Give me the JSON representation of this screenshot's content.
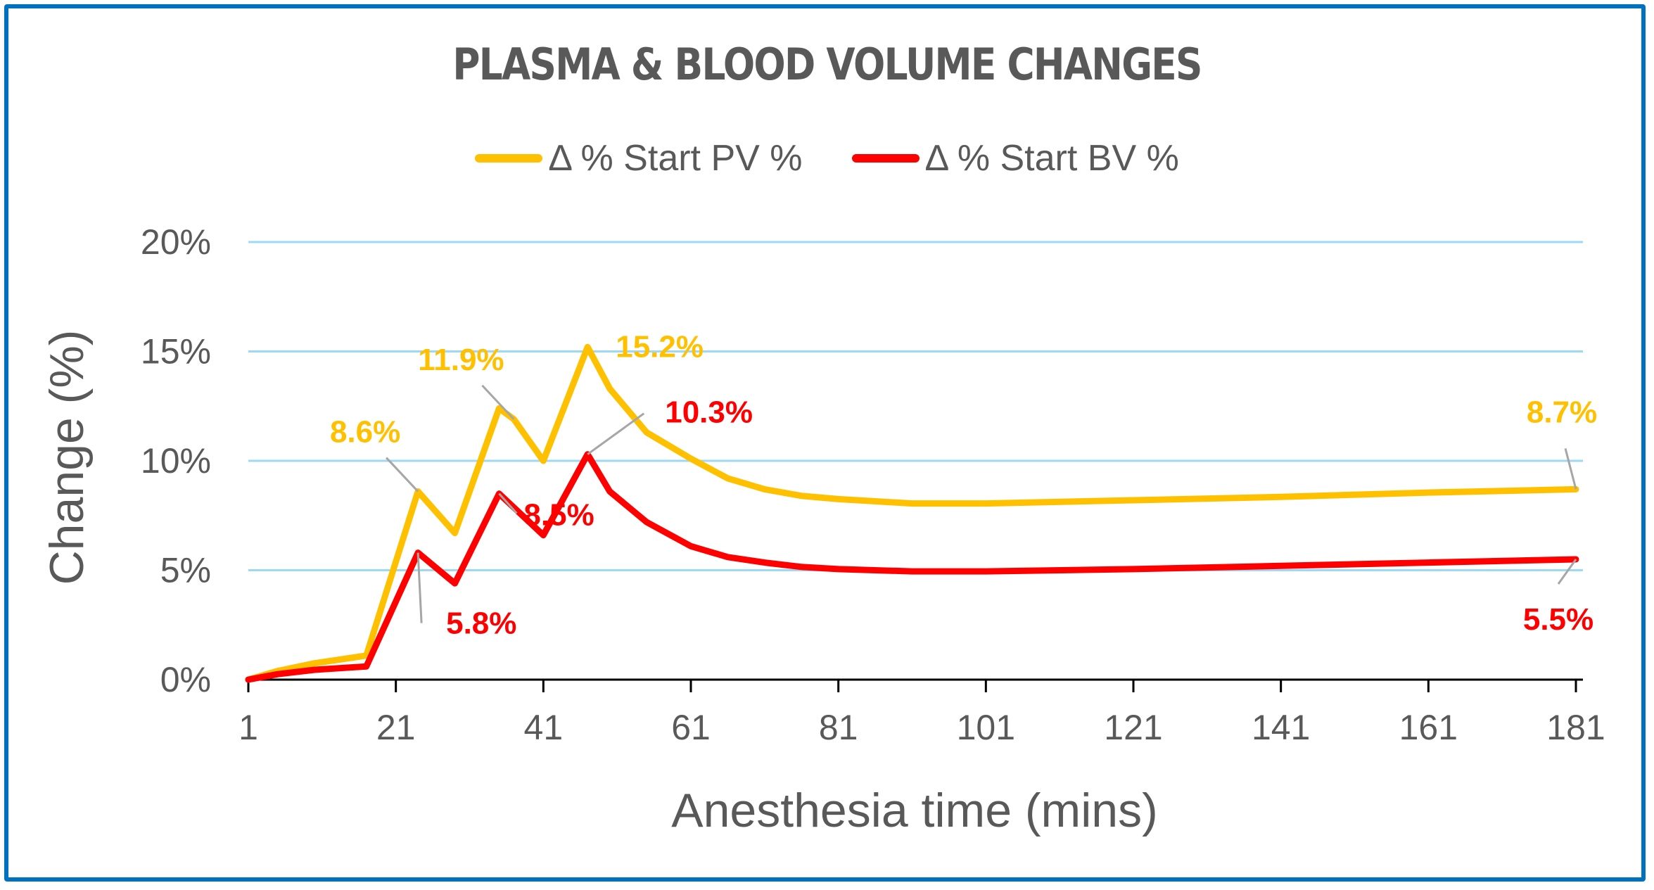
{
  "chart_data": {
    "type": "line",
    "title": "PLASMA & BLOOD VOLUME CHANGES",
    "xlabel": "Anesthesia time (mins)",
    "ylabel": "Change (%)",
    "xlim": [
      1,
      181
    ],
    "ylim": [
      0,
      20
    ],
    "x_ticks": [
      1,
      21,
      41,
      61,
      81,
      101,
      121,
      141,
      161,
      181
    ],
    "y_ticks": [
      0,
      5,
      10,
      15,
      20
    ],
    "y_tick_labels": [
      "0%",
      "5%",
      "10%",
      "15%",
      "20%"
    ],
    "grid": "horizontal",
    "legend_position": "top",
    "series": [
      {
        "name": "Δ % Start PV %",
        "color": "#FFC000",
        "points": [
          [
            1,
            0
          ],
          [
            5,
            0.4
          ],
          [
            10,
            0.75
          ],
          [
            17,
            1.1
          ],
          [
            24,
            8.6
          ],
          [
            29,
            6.7
          ],
          [
            35,
            12.4
          ],
          [
            37,
            11.9
          ],
          [
            41,
            10.0
          ],
          [
            47,
            15.2
          ],
          [
            50,
            13.3
          ],
          [
            55,
            11.3
          ],
          [
            61,
            10.1
          ],
          [
            66,
            9.2
          ],
          [
            71,
            8.7
          ],
          [
            76,
            8.4
          ],
          [
            81,
            8.25
          ],
          [
            91,
            8.05
          ],
          [
            101,
            8.05
          ],
          [
            121,
            8.2
          ],
          [
            141,
            8.35
          ],
          [
            161,
            8.55
          ],
          [
            181,
            8.7
          ]
        ],
        "labels": [
          {
            "x": 24,
            "y": 8.6,
            "text": "8.6%",
            "pos": "upper-left"
          },
          {
            "x": 37,
            "y": 11.9,
            "text": "11.9%",
            "pos": "upper-left"
          },
          {
            "x": 47,
            "y": 15.2,
            "text": "15.2%",
            "pos": "right"
          },
          {
            "x": 181,
            "y": 8.7,
            "text": "8.7%",
            "pos": "above"
          }
        ]
      },
      {
        "name": "Δ % Start BV %",
        "color": "#FF0000",
        "points": [
          [
            1,
            0
          ],
          [
            5,
            0.25
          ],
          [
            10,
            0.45
          ],
          [
            17,
            0.6
          ],
          [
            24,
            5.8
          ],
          [
            29,
            4.4
          ],
          [
            35,
            8.5
          ],
          [
            41,
            6.6
          ],
          [
            47,
            10.3
          ],
          [
            50,
            8.6
          ],
          [
            55,
            7.2
          ],
          [
            61,
            6.1
          ],
          [
            66,
            5.6
          ],
          [
            71,
            5.35
          ],
          [
            76,
            5.15
          ],
          [
            81,
            5.05
          ],
          [
            91,
            4.95
          ],
          [
            101,
            4.95
          ],
          [
            121,
            5.05
          ],
          [
            141,
            5.2
          ],
          [
            161,
            5.35
          ],
          [
            181,
            5.5
          ]
        ],
        "labels": [
          {
            "x": 24,
            "y": 5.8,
            "text": "5.8%",
            "pos": "below-right"
          },
          {
            "x": 35,
            "y": 8.5,
            "text": "8.5%",
            "pos": "lower-right"
          },
          {
            "x": 47,
            "y": 10.3,
            "text": "10.3%",
            "pos": "upper-right"
          },
          {
            "x": 181,
            "y": 5.5,
            "text": "5.5%",
            "pos": "below"
          }
        ]
      }
    ]
  },
  "colors": {
    "frame": "#0070C0",
    "gridline": "#9DD9F3",
    "axis": "#000000",
    "text": "#595959",
    "leader": "#A6A6A6"
  }
}
